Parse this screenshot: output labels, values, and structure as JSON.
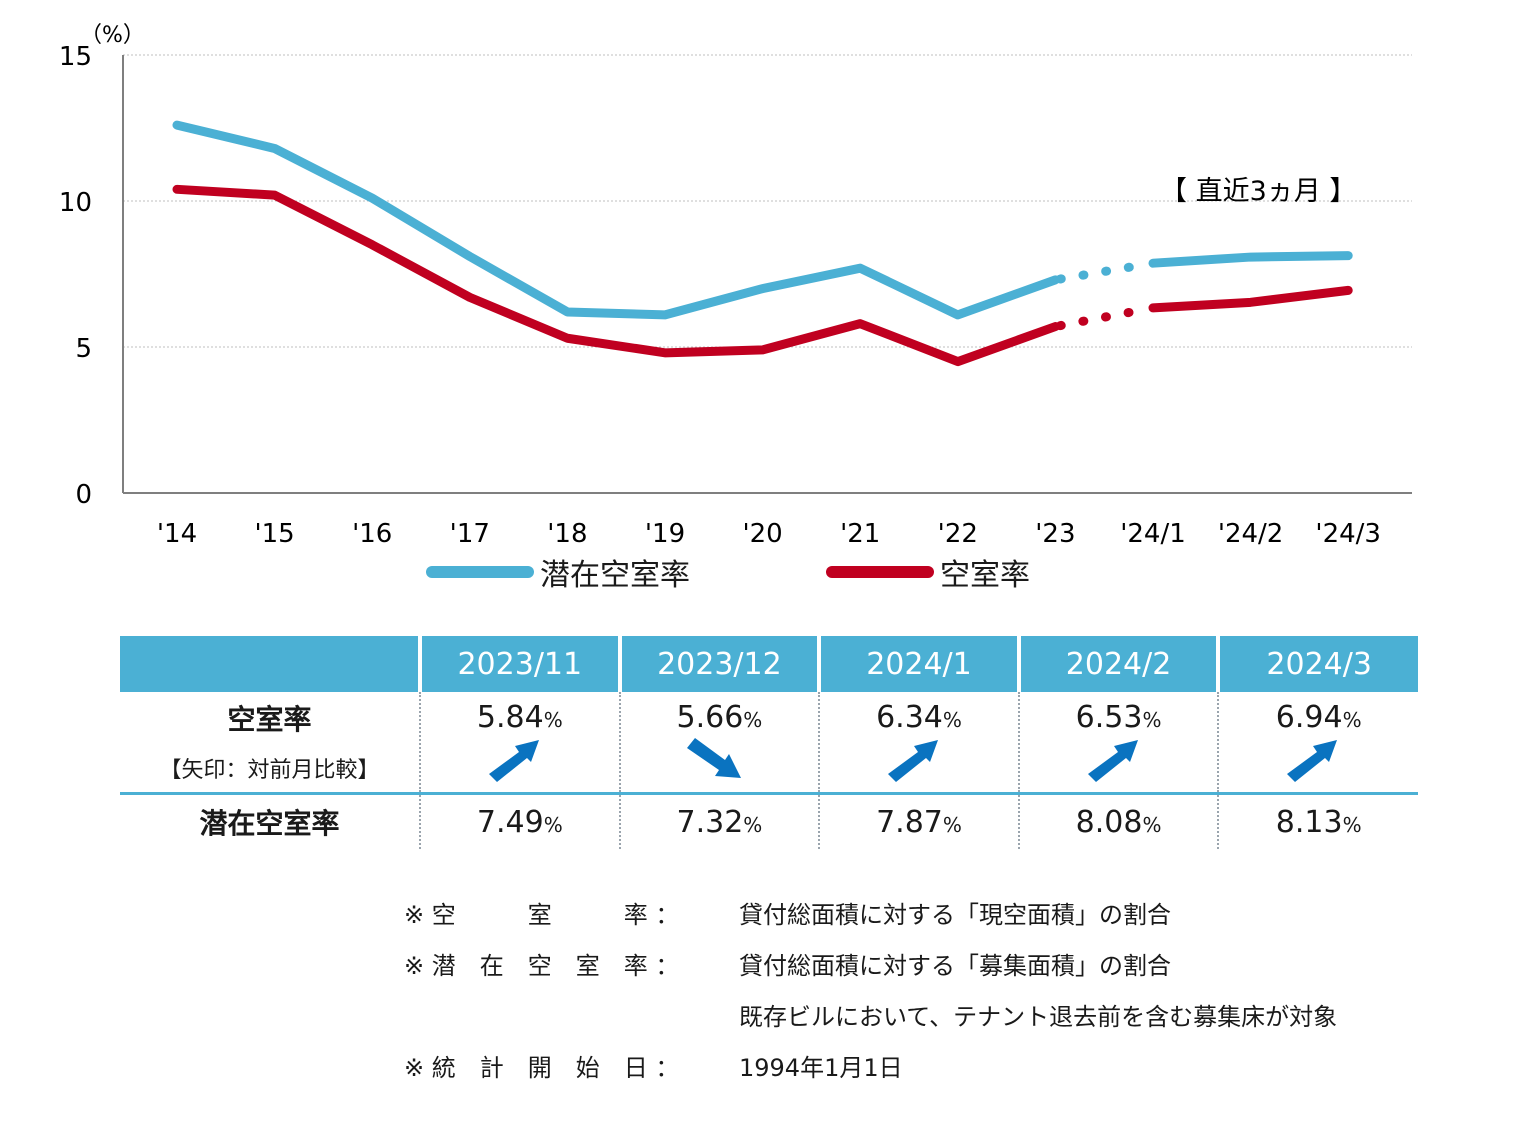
{
  "chart_data": {
    "type": "line",
    "unit_label": "（%）",
    "ylim": [
      0,
      15
    ],
    "yticks": [
      "0",
      "5",
      "10",
      "15"
    ],
    "categories": [
      "'14",
      "'15",
      "'16",
      "'17",
      "'18",
      "'19",
      "'20",
      "'21",
      "'22",
      "'23",
      "'24/1",
      "'24/2",
      "'24/3"
    ],
    "annotation": "【 直近3ヵ月 】",
    "series": [
      {
        "name": "潜在空室率",
        "color": "#4bb0d4",
        "values": [
          12.6,
          11.8,
          10.1,
          8.1,
          6.2,
          6.1,
          7.0,
          7.7,
          6.1,
          7.3,
          7.87,
          8.08,
          8.13
        ]
      },
      {
        "name": "空室率",
        "color": "#c00020",
        "values": [
          10.4,
          10.2,
          8.5,
          6.7,
          5.3,
          4.8,
          4.9,
          5.8,
          4.5,
          5.7,
          6.34,
          6.53,
          6.94
        ]
      }
    ]
  },
  "table": {
    "headers": [
      "2023/11",
      "2023/12",
      "2024/1",
      "2024/2",
      "2024/3"
    ],
    "row_vacancy": {
      "label": "空室率",
      "sublabel": "【矢印：対前月比較】",
      "values": [
        "5.84",
        "5.66",
        "6.34",
        "6.53",
        "6.94"
      ],
      "trend": [
        "up",
        "down",
        "up",
        "up",
        "up"
      ]
    },
    "row_latent": {
      "label": "潜在空室率",
      "values": [
        "7.49",
        "7.32",
        "7.87",
        "8.08",
        "8.13"
      ]
    },
    "pct_sign": "%",
    "arrow_color": "#0a73c0"
  },
  "notes": [
    {
      "key": "※ 空　　　室　　　率 ：",
      "text": "貸付総面積に対する「現空面積」の割合"
    },
    {
      "key": "※ 潜　在　空　室　率 ：",
      "text": "貸付総面積に対する「募集面積」の割合"
    },
    {
      "key": "",
      "text": "既存ビルにおいて、テナント退去前を含む募集床が対象"
    },
    {
      "key": "※ 統　計　開　始　日 ：",
      "text": "1994年1月1日"
    }
  ]
}
